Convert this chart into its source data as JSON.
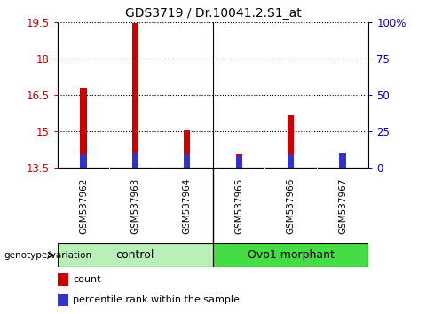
{
  "title": "GDS3719 / Dr.10041.2.S1_at",
  "samples": [
    "GSM537962",
    "GSM537963",
    "GSM537964",
    "GSM537965",
    "GSM537966",
    "GSM537967"
  ],
  "count_values": [
    16.8,
    19.45,
    15.05,
    14.05,
    15.65,
    13.78
  ],
  "percentile_values": [
    14.05,
    14.12,
    14.05,
    13.98,
    14.05,
    14.1
  ],
  "ylim_left": [
    13.5,
    19.5
  ],
  "ylim_right": [
    0,
    100
  ],
  "yticks_left": [
    13.5,
    15.0,
    16.5,
    18.0,
    19.5
  ],
  "yticks_right": [
    0,
    25,
    50,
    75,
    100
  ],
  "ytick_labels_left": [
    "13.5",
    "15",
    "16.5",
    "18",
    "19.5"
  ],
  "ytick_labels_right": [
    "0",
    "25",
    "50",
    "75",
    "100%"
  ],
  "bar_bottom": 13.5,
  "count_color": "#cc0000",
  "percentile_color": "#3333cc",
  "count_group": [
    0,
    1,
    2,
    3,
    4,
    5
  ],
  "group_divider": 2.5,
  "control_label": "control",
  "ovo_label": "Ovo1 morphant",
  "control_color": "#b8f0b8",
  "ovo_color": "#44dd44",
  "group_label_text": "genotype/variation",
  "legend_count": "count",
  "legend_pct": "percentile rank within the sample",
  "bar_width": 0.12,
  "tick_color_left": "#cc0000",
  "tick_color_right": "#0000cc",
  "bg_color": "#ffffff",
  "xticklabel_bg": "#c8c8c8",
  "title_fontsize": 10
}
